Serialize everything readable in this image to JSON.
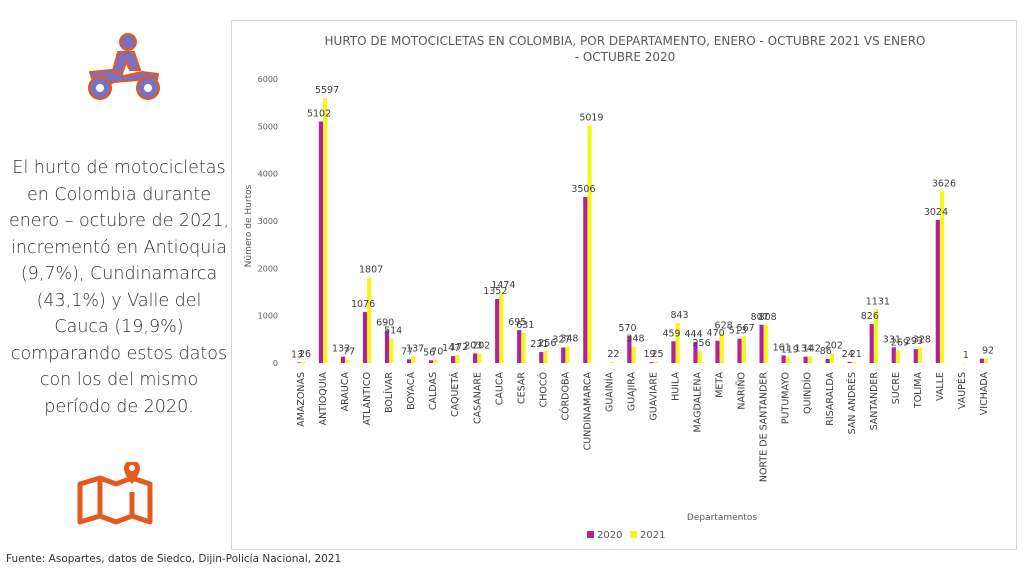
{
  "summary_text": "El hurto de motocicletas en Colombia durante enero – octubre de 2021, incrementó en Antioquia (9,7%), Cundinamarca (43,1%) y Valle del Cauca (19,9%) comparando estos datos con los del mismo período de 2020.",
  "source_note": "Fuente: Asopartes, datos de Siedco, Dijin-Policía Nacional, 2021",
  "icons": {
    "motorcycle": "motorcycle-rider-icon",
    "map": "map-location-icon"
  },
  "colors": {
    "icon_fill": "#7d6fbd",
    "icon_stroke": "#e25a1c",
    "map_stroke": "#e25a1c",
    "series_2020": "#b0219a",
    "series_2021": "#f5f51f"
  },
  "chart_data": {
    "type": "bar",
    "title_line1": "HURTO DE MOTOCICLETAS EN COLOMBIA, POR DEPARTAMENTO, ENERO - OCTUBRE 2021 VS ENERO",
    "title_line2": "- OCTUBRE 2020",
    "xlabel": "Departamentos",
    "ylabel": "Número de Hurtos",
    "ylim": [
      0,
      6000
    ],
    "yticks": [
      0,
      1000,
      2000,
      3000,
      4000,
      5000,
      6000
    ],
    "grid": false,
    "legend_position": "bottom",
    "categories": [
      "AMAZONAS",
      "ANTIOQUIA",
      "ARAUCA",
      "ATLÁNTICO",
      "BOLÍVAR",
      "BOYACÁ",
      "CALDAS",
      "CAQUETÁ",
      "CASANARE",
      "CAUCA",
      "CESAR",
      "CHOCÓ",
      "CÓRDOBA",
      "CUNDINAMARCA",
      "GUAINÍA",
      "GUAJIRA",
      "GUAVIARE",
      "HUILA",
      "MAGDALENA",
      "META",
      "NARIÑO",
      "NORTE DE SANTANDER",
      "PUTUMAYO",
      "QUINDÍO",
      "RISARALDA",
      "SAN ANDRÉS",
      "SANTANDER",
      "SUCRE",
      "TOLIMA",
      "VALLE",
      "VAUPÉS",
      "VICHADA"
    ],
    "series": [
      {
        "name": "2020",
        "values": [
          13,
          5102,
          133,
          1076,
          690,
          77,
          56,
          147,
          203,
          1352,
          695,
          231,
          327,
          3506,
          null,
          570,
          19,
          459,
          444,
          470,
          513,
          807,
          161,
          134,
          86,
          24,
          826,
          331,
          293,
          3024,
          null,
          92
        ],
        "labels": [
          "13",
          "5102",
          "133",
          "1076",
          "690",
          "77",
          "56",
          "147",
          "203",
          "1352",
          "695",
          "231",
          "327",
          "3506",
          "",
          "570",
          "19",
          "459",
          "444",
          "470",
          "513",
          "807",
          "161",
          "134",
          "86",
          "24",
          "826",
          "331",
          "293",
          "3024",
          "",
          ""
        ]
      },
      {
        "name": "2021",
        "values": [
          26,
          5597,
          77,
          1807,
          514,
          137,
          70,
          172,
          202,
          1474,
          631,
          256,
          348,
          5019,
          22,
          348,
          25,
          843,
          256,
          628,
          567,
          808,
          119,
          142,
          202,
          21,
          1131,
          269,
          328,
          3626,
          1,
          92
        ],
        "labels": [
          "26",
          "5597",
          "77",
          "1807",
          "514",
          "137",
          "70",
          "172",
          "202",
          "1474",
          "631",
          "256",
          "348",
          "5019",
          "22",
          "348",
          "25",
          "843",
          "256",
          "628",
          "567",
          "808",
          "119",
          "142",
          "202",
          "21",
          "1131",
          "269",
          "328",
          "3626",
          "1",
          "92"
        ]
      }
    ]
  }
}
